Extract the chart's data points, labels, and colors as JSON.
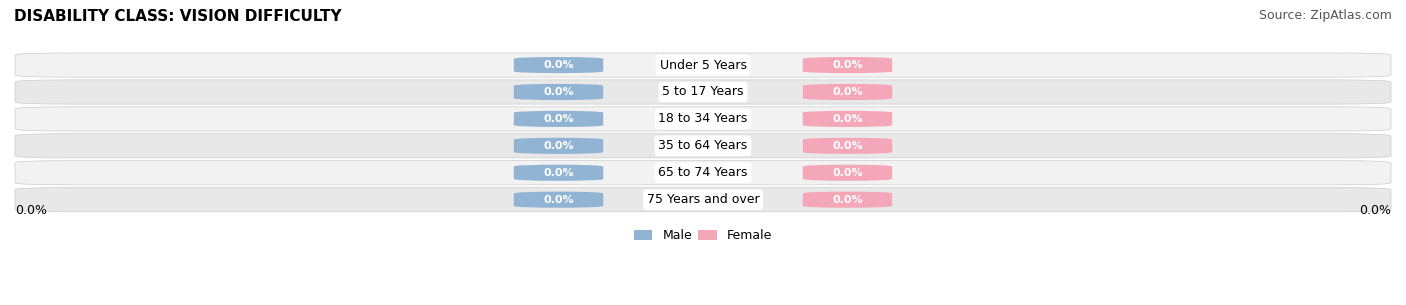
{
  "title": "DISABILITY CLASS: VISION DIFFICULTY",
  "source": "Source: ZipAtlas.com",
  "categories": [
    "Under 5 Years",
    "5 to 17 Years",
    "18 to 34 Years",
    "35 to 64 Years",
    "65 to 74 Years",
    "75 Years and over"
  ],
  "male_values": [
    0.0,
    0.0,
    0.0,
    0.0,
    0.0,
    0.0
  ],
  "female_values": [
    0.0,
    0.0,
    0.0,
    0.0,
    0.0,
    0.0
  ],
  "male_color": "#92b4d4",
  "female_color": "#f4a7b9",
  "title_fontsize": 11,
  "source_fontsize": 9,
  "tick_label_fontsize": 9,
  "bar_label_fontsize": 8,
  "category_fontsize": 9,
  "legend_fontsize": 9,
  "fig_bg_color": "#ffffff",
  "row_bg_colors": [
    "#f2f2f2",
    "#e8e8e8"
  ],
  "bar_height": 0.6,
  "x_left_label": "0.0%",
  "x_right_label": "0.0%"
}
